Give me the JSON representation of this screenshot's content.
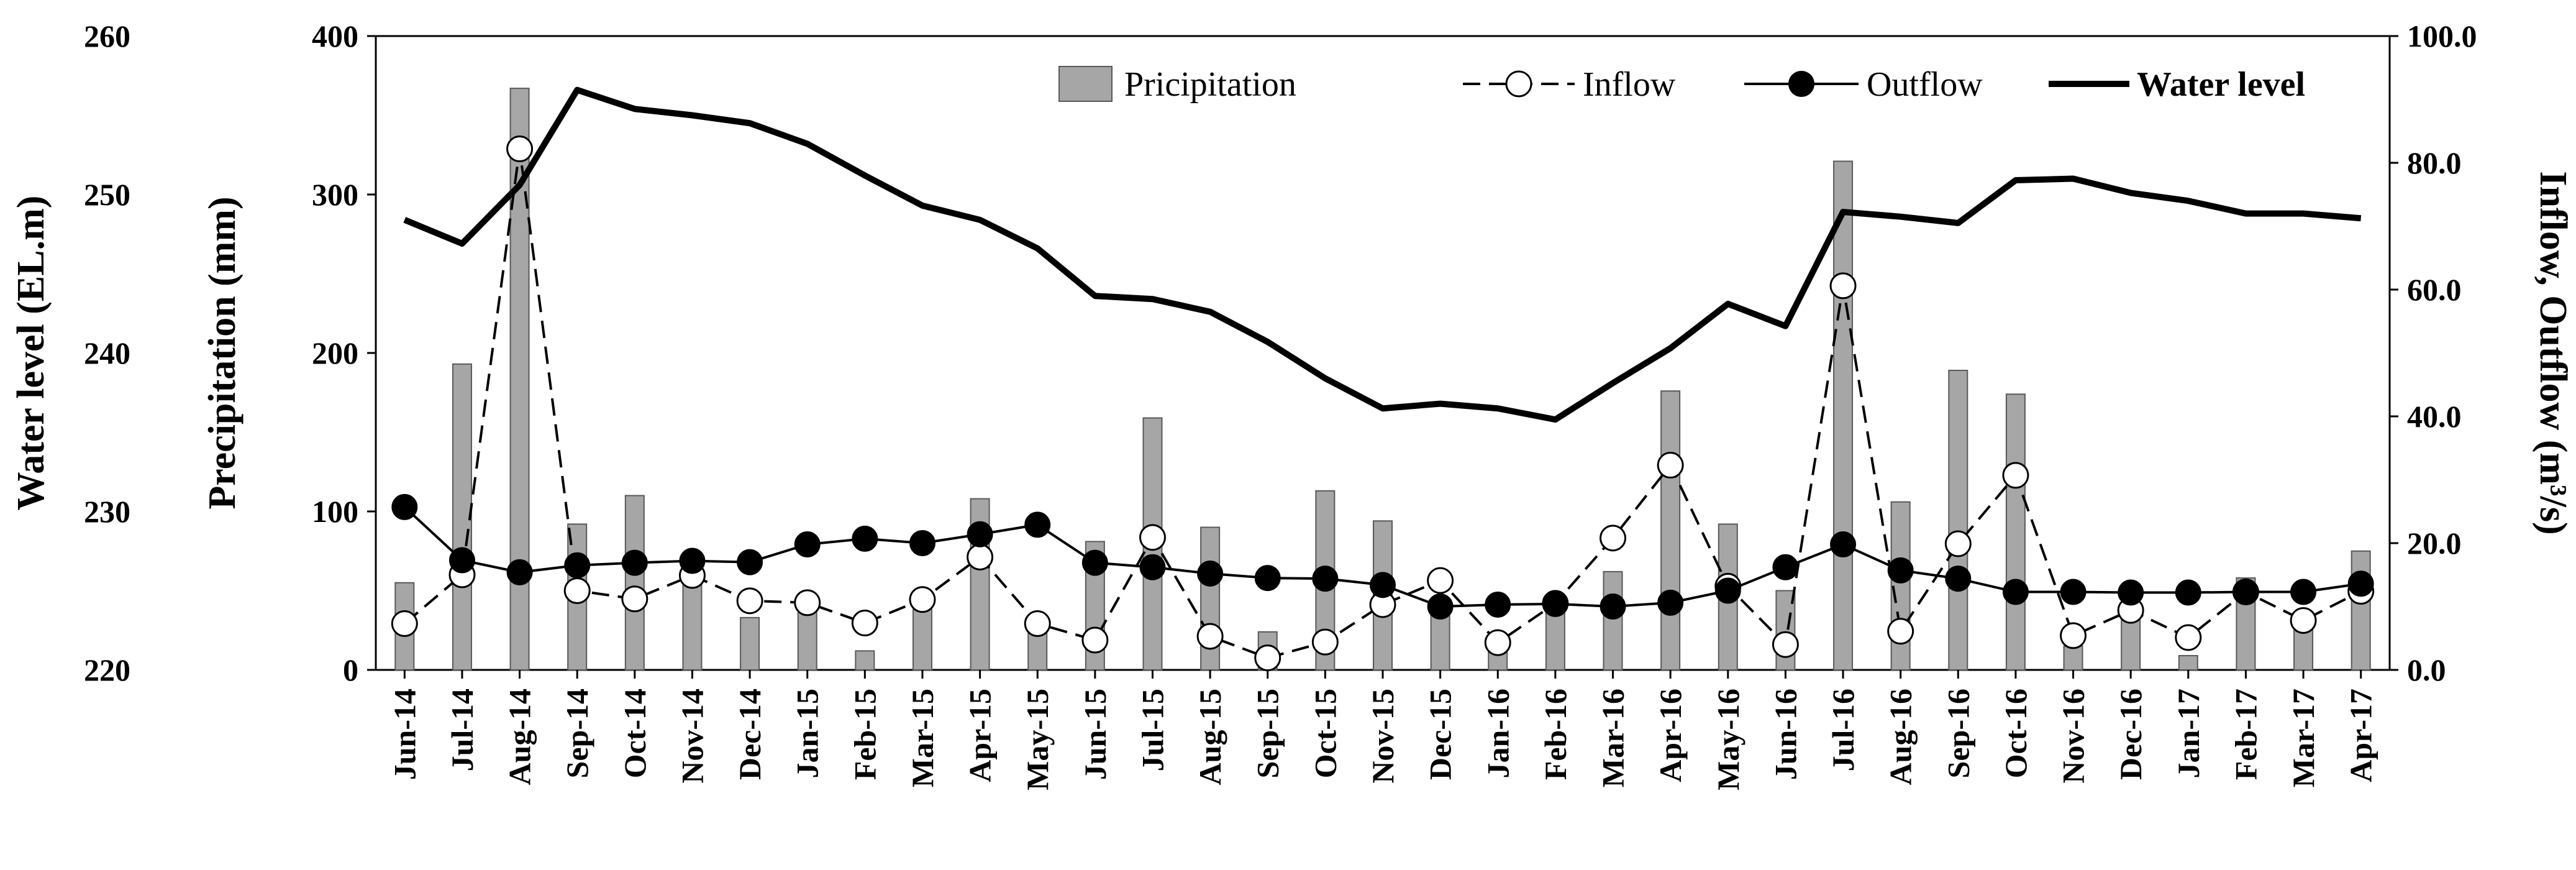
{
  "chart_data": {
    "type": "bar+line",
    "categories": [
      "Jun-14",
      "Jul-14",
      "Aug-14",
      "Sep-14",
      "Oct-14",
      "Nov-14",
      "Dec-14",
      "Jan-15",
      "Feb-15",
      "Mar-15",
      "Apr-15",
      "May-15",
      "Jun-15",
      "Jul-15",
      "Aug-15",
      "Sep-15",
      "Oct-15",
      "Nov-15",
      "Dec-15",
      "Jan-16",
      "Feb-16",
      "Mar-16",
      "Apr-16",
      "May-16",
      "Jun-16",
      "Jul-16",
      "Aug-16",
      "Sep-16",
      "Oct-16",
      "Nov-16",
      "Dec-16",
      "Jan-17",
      "Feb-17",
      "Mar-17",
      "Apr-17"
    ],
    "series": [
      {
        "name": "Pricipitation",
        "type": "bar",
        "axis": "precipitation",
        "values": [
          55,
          193,
          367,
          92,
          110,
          59,
          33,
          38,
          12,
          45,
          108,
          30,
          81,
          159,
          90,
          24,
          113,
          94,
          44,
          13,
          40,
          62,
          176,
          92,
          50,
          321,
          106,
          189,
          174,
          15,
          34,
          9,
          58,
          30,
          75
        ]
      },
      {
        "name": "Inflow",
        "type": "line-dashed-open-marker",
        "axis": "flow",
        "values": [
          7.3,
          15.0,
          82.2,
          12.5,
          11.2,
          14.9,
          10.9,
          10.6,
          7.4,
          11.1,
          17.8,
          7.3,
          4.7,
          20.9,
          5.3,
          1.9,
          4.4,
          10.3,
          14.1,
          4.3,
          10.5,
          20.8,
          32.3,
          13.2,
          4.0,
          60.6,
          6.1,
          19.9,
          30.7,
          5.4,
          9.4,
          5.1,
          12.3,
          7.8,
          12.4
        ],
        "marker_color": "#ffffff"
      },
      {
        "name": "Outflow",
        "type": "line-solid-filled-marker",
        "axis": "flow",
        "values": [
          25.7,
          17.3,
          15.4,
          16.5,
          16.9,
          17.2,
          17.0,
          19.8,
          20.7,
          20.0,
          21.4,
          22.9,
          16.9,
          16.2,
          15.2,
          14.5,
          14.4,
          13.4,
          10.0,
          10.3,
          10.4,
          10.0,
          10.6,
          12.5,
          16.2,
          19.8,
          15.7,
          14.4,
          12.3,
          12.3,
          12.2,
          12.2,
          12.3,
          12.3,
          13.6
        ],
        "marker_color": "#000000"
      },
      {
        "name": "Water level",
        "type": "line-thick",
        "axis": "water_level",
        "values": [
          248.4,
          246.9,
          250.6,
          256.6,
          255.4,
          255.0,
          254.5,
          253.2,
          251.2,
          249.3,
          248.4,
          246.6,
          243.6,
          243.4,
          242.6,
          240.7,
          238.4,
          236.5,
          236.8,
          236.5,
          235.8,
          238.1,
          240.3,
          243.1,
          241.7,
          248.9,
          248.6,
          248.2,
          250.9,
          251.0,
          250.1,
          249.6,
          248.8,
          248.8,
          248.5
        ]
      }
    ],
    "axes": {
      "water_level": {
        "title": "Water level (EL.m)",
        "range": [
          220,
          260
        ],
        "ticks": [
          "220",
          "230",
          "240",
          "250",
          "260"
        ]
      },
      "precipitation": {
        "title": "Precipitation (mm)",
        "range": [
          0,
          400
        ],
        "ticks": [
          "0",
          "100",
          "200",
          "300",
          "400"
        ]
      },
      "flow": {
        "title": "Inflow, Outflow (m³/s)",
        "range": [
          0,
          100
        ],
        "ticks": [
          "0.0",
          "20.0",
          "40.0",
          "60.0",
          "80.0",
          "100.0"
        ]
      }
    },
    "legend": {
      "position": "top-right"
    },
    "grid": false,
    "colors": {
      "bar_fill": "#a6a6a6",
      "bar_stroke": "#595959",
      "line": "#000000"
    }
  }
}
